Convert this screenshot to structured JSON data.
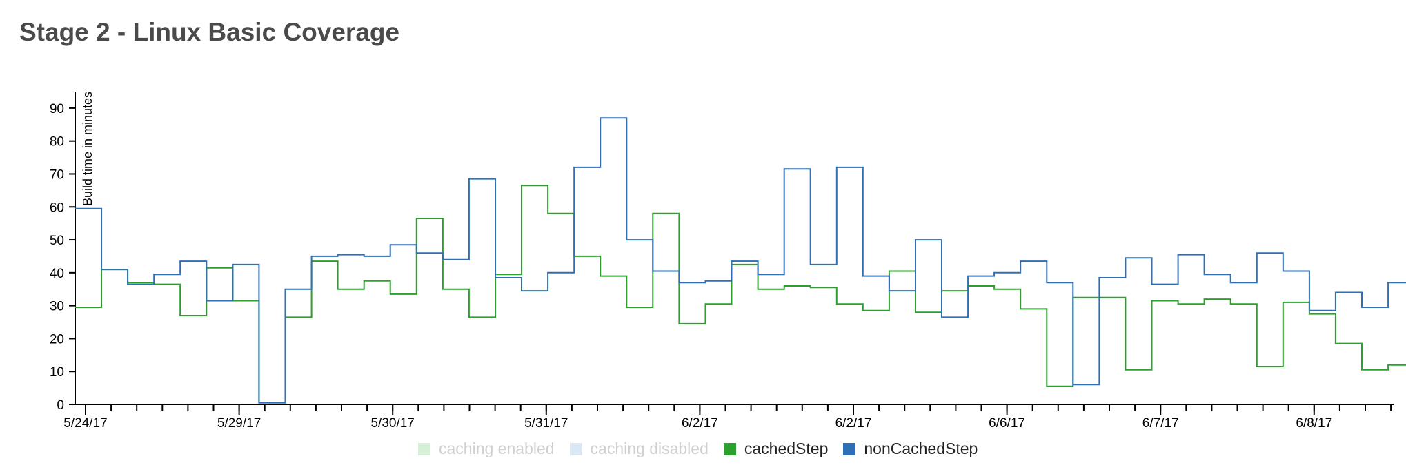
{
  "page_title": "Stage 2 - Linux Basic Coverage",
  "legend": [
    {
      "label": "caching enabled",
      "color": "#d7efd6",
      "active": false
    },
    {
      "label": "caching disabled",
      "color": "#dbe7f3",
      "active": false
    },
    {
      "label": "cachedStep",
      "color": "#2ca02c",
      "active": true
    },
    {
      "label": "nonCachedStep",
      "color": "#2f6fb5",
      "active": true
    }
  ],
  "chart_data": {
    "type": "line",
    "interpolation": "step-after",
    "title": "Stage 2 - Linux Basic Coverage",
    "xlabel": "",
    "ylabel": "Build time in minutes",
    "ylim": [
      0,
      95
    ],
    "yticks": [
      0,
      10,
      20,
      30,
      40,
      50,
      60,
      70,
      80,
      90
    ],
    "x_tick_labels": [
      "5/24/17",
      "5/29/17",
      "5/30/17",
      "5/31/17",
      "6/2/17",
      "6/2/17",
      "6/6/17",
      "6/7/17",
      "6/8/17"
    ],
    "x_minor_tick_count": 52,
    "build_count": 49,
    "grid": false,
    "series": [
      {
        "name": "cachedStep",
        "color": "#2ca02c",
        "values": [
          29.5,
          41,
          37,
          36.5,
          27,
          41.5,
          31.5,
          0.5,
          26.5,
          43.5,
          35,
          37.5,
          33.5,
          56.5,
          35,
          26.5,
          39.5,
          66.5,
          58,
          45,
          39,
          29.5,
          58,
          24.5,
          30.5,
          42.5,
          35,
          36,
          35.5,
          30.5,
          28.5,
          40.5,
          28,
          34.5,
          36,
          35,
          29,
          5.5,
          32.5,
          32.5,
          10.5,
          31.5,
          30.5,
          32,
          30.5,
          11.5,
          31,
          27.5,
          18.5,
          10.5,
          12
        ]
      },
      {
        "name": "nonCachedStep",
        "color": "#2f6fb5",
        "values": [
          59.5,
          41,
          36.5,
          39.5,
          43.5,
          31.5,
          42.5,
          0.5,
          35,
          45,
          45.5,
          45,
          48.5,
          46,
          44,
          68.5,
          38.5,
          34.5,
          40,
          72,
          87,
          50,
          40.5,
          37,
          37.5,
          43.5,
          39.5,
          71.5,
          42.5,
          72,
          39,
          34.5,
          50,
          26.5,
          39,
          40,
          43.5,
          37,
          6,
          38.5,
          44.5,
          36.5,
          45.5,
          39.5,
          37,
          46,
          40.5,
          28.5,
          34,
          29.5,
          37
        ]
      }
    ]
  }
}
